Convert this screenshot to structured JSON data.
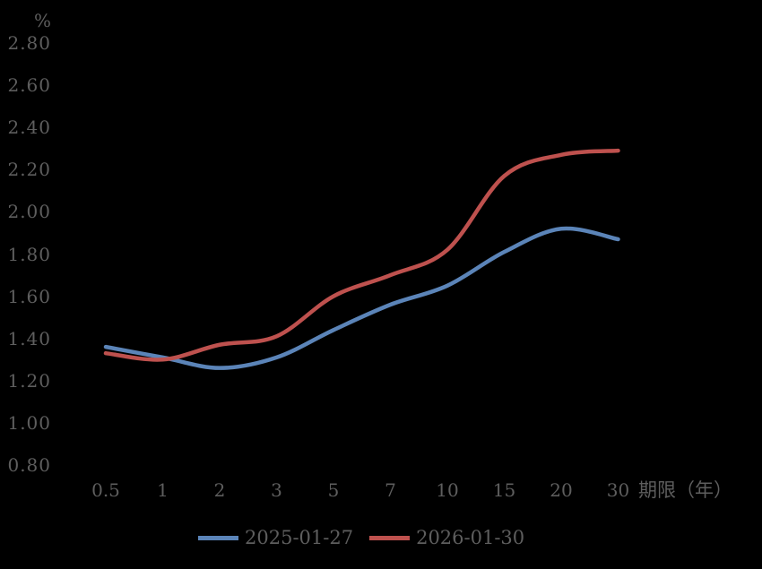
{
  "chart": {
    "background_color": "#000000",
    "text_color": "#5e5e5e"
  },
  "chart_data": {
    "type": "line",
    "title": "",
    "xlabel": "期限（年）",
    "ylabel": "%",
    "categories": [
      "0.5",
      "1",
      "2",
      "3",
      "5",
      "7",
      "10",
      "15",
      "20",
      "30"
    ],
    "series": [
      {
        "name": "2025-01-27",
        "color": "#5B84B8",
        "values": [
          1.36,
          1.31,
          1.26,
          1.31,
          1.44,
          1.56,
          1.65,
          1.81,
          1.92,
          1.87
        ]
      },
      {
        "name": "2026-01-30",
        "color": "#BE514E",
        "values": [
          1.33,
          1.3,
          1.37,
          1.41,
          1.6,
          1.7,
          1.82,
          2.17,
          2.27,
          2.29
        ]
      }
    ],
    "ylim": [
      0.8,
      2.8
    ],
    "ytick_step": 0.2,
    "ytick_labels": [
      "2.80",
      "2.60",
      "2.40",
      "2.20",
      "2.00",
      "1.80",
      "1.60",
      "1.40",
      "1.20",
      "1.00",
      "0.80"
    ],
    "grid": false,
    "axes_visible": false,
    "smooth": true,
    "legend_position": "bottom"
  }
}
